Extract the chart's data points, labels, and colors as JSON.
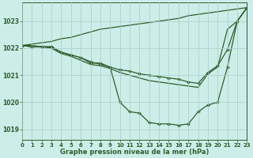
{
  "title": "Graphe pression niveau de la mer (hPa)",
  "bg_color": "#cceee8",
  "line_color": "#2d5e2d",
  "grid_color": "#aacccc",
  "xlim": [
    0,
    23
  ],
  "ylim": [
    1018.6,
    1023.7
  ],
  "yticks": [
    1019,
    1020,
    1021,
    1022,
    1023
  ],
  "xticks": [
    0,
    1,
    2,
    3,
    4,
    5,
    6,
    7,
    8,
    9,
    10,
    11,
    12,
    13,
    14,
    15,
    16,
    17,
    18,
    19,
    20,
    21,
    22,
    23
  ],
  "series": [
    {
      "x": [
        0,
        1,
        2,
        3,
        4,
        5,
        6,
        7,
        8,
        9,
        10,
        11,
        12,
        13,
        14,
        15,
        16,
        17,
        18,
        19,
        20,
        21,
        22,
        23
      ],
      "y": [
        1022.1,
        1022.05,
        1022.05,
        1022.05,
        1021.85,
        1021.75,
        1021.65,
        1021.45,
        1021.45,
        1021.3,
        1020.0,
        1019.65,
        1019.6,
        1019.25,
        1019.2,
        1019.2,
        1019.15,
        1019.2,
        1019.65,
        1019.9,
        1020.0,
        1021.3,
        1023.0,
        1023.5
      ],
      "has_markers": true
    },
    {
      "x": [
        0,
        1,
        2,
        3,
        4,
        5,
        6,
        7,
        8,
        9,
        10,
        11,
        12,
        13,
        14,
        15,
        16,
        17,
        18,
        19,
        20,
        21,
        22,
        23
      ],
      "y": [
        1022.1,
        1022.05,
        1022.05,
        1022.05,
        1021.85,
        1021.75,
        1021.65,
        1021.5,
        1021.4,
        1021.3,
        1021.2,
        1021.15,
        1021.05,
        1021.0,
        1020.95,
        1020.9,
        1020.85,
        1020.75,
        1020.7,
        1021.1,
        1021.35,
        1021.95,
        1023.0,
        1023.5
      ],
      "has_markers": true
    },
    {
      "x": [
        0,
        1,
        2,
        3,
        4,
        5,
        6,
        7,
        8,
        9,
        10,
        11,
        12,
        13,
        14,
        15,
        16,
        17,
        18,
        19,
        20,
        21,
        22,
        23
      ],
      "y": [
        1022.1,
        1022.15,
        1022.2,
        1022.25,
        1022.35,
        1022.4,
        1022.5,
        1022.6,
        1022.7,
        1022.75,
        1022.8,
        1022.85,
        1022.9,
        1022.95,
        1023.0,
        1023.05,
        1023.1,
        1023.2,
        1023.25,
        1023.3,
        1023.35,
        1023.4,
        1023.45,
        1023.5
      ],
      "has_markers": false
    },
    {
      "x": [
        0,
        1,
        2,
        3,
        4,
        5,
        6,
        7,
        8,
        9,
        10,
        11,
        12,
        13,
        14,
        15,
        16,
        17,
        18,
        19,
        20,
        21,
        22,
        23
      ],
      "y": [
        1022.1,
        1022.1,
        1022.05,
        1022.0,
        1021.8,
        1021.7,
        1021.55,
        1021.4,
        1021.35,
        1021.25,
        1021.1,
        1021.0,
        1020.9,
        1020.8,
        1020.75,
        1020.7,
        1020.65,
        1020.6,
        1020.55,
        1021.05,
        1021.3,
        1022.7,
        1023.0,
        1023.5
      ],
      "has_markers": false
    }
  ]
}
